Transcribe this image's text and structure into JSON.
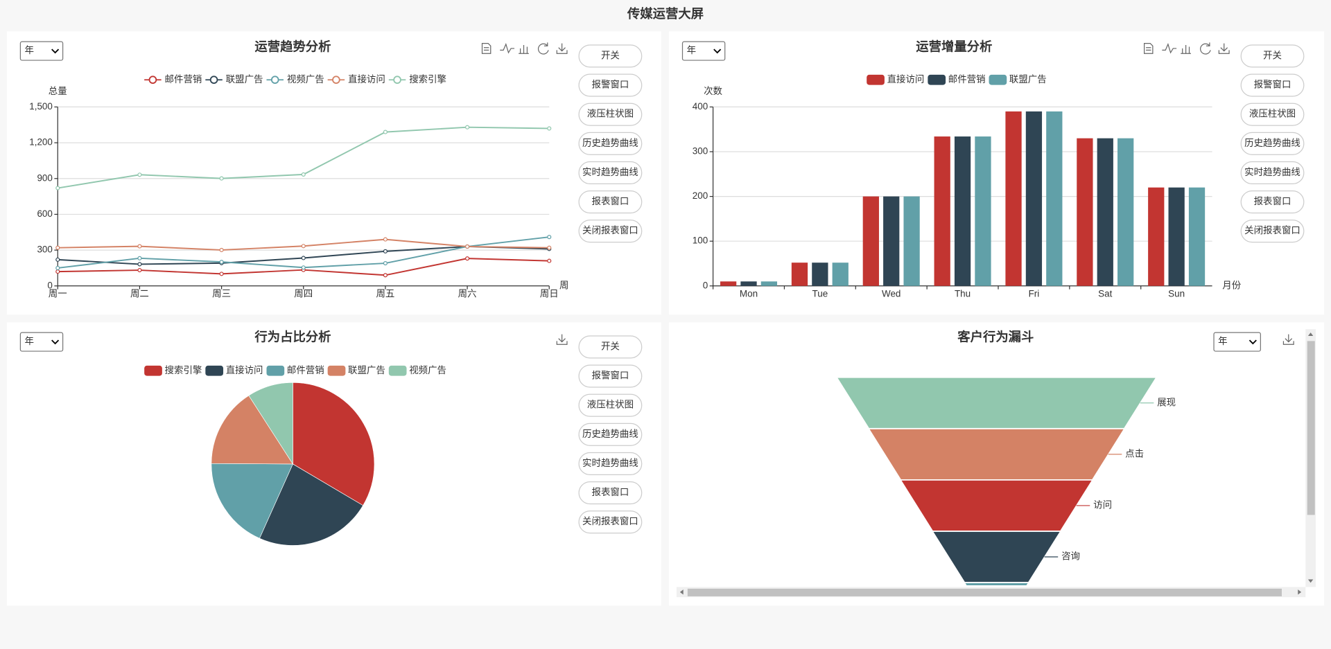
{
  "header": {
    "title": "传媒运营大屏"
  },
  "controls": {
    "period": "年",
    "buttons": [
      "开关",
      "报警窗口",
      "液压柱状图",
      "历史趋势曲线",
      "实时趋势曲线",
      "报表窗口",
      "关闭报表窗口"
    ]
  },
  "chart_data": [
    {
      "type": "line",
      "title": "运营趋势分析",
      "y_axis_label": "总量",
      "x_axis_label": "周",
      "categories": [
        "周一",
        "周二",
        "周三",
        "周四",
        "周五",
        "周六",
        "周日"
      ],
      "series": [
        {
          "name": "邮件营销",
          "color": "#c23531",
          "values": [
            120,
            132,
            101,
            134,
            90,
            230,
            210
          ]
        },
        {
          "name": "联盟广告",
          "color": "#2f4554",
          "values": [
            220,
            182,
            191,
            234,
            290,
            330,
            310
          ]
        },
        {
          "name": "视频广告",
          "color": "#61a0a8",
          "values": [
            150,
            232,
            201,
            154,
            190,
            330,
            410
          ]
        },
        {
          "name": "直接访问",
          "color": "#d48265",
          "values": [
            320,
            332,
            301,
            334,
            390,
            330,
            320
          ]
        },
        {
          "name": "搜索引擎",
          "color": "#91c7ae",
          "values": [
            820,
            932,
            901,
            934,
            1290,
            1330,
            1320
          ]
        }
      ],
      "ylim": [
        0,
        1500
      ],
      "yticks": [
        0,
        300,
        600,
        900,
        {
          "value": 1200,
          "label": "1,200"
        },
        {
          "value": 1500,
          "label": "1,500"
        }
      ],
      "grid": true,
      "legend": "top"
    },
    {
      "type": "bar",
      "title": "运营增量分析",
      "y_axis_label": "次数",
      "x_axis_label": "月份",
      "categories": [
        "Mon",
        "Tue",
        "Wed",
        "Thu",
        "Fri",
        "Sat",
        "Sun"
      ],
      "series": [
        {
          "name": "直接访问",
          "color": "#c23531",
          "values": [
            10,
            52,
            200,
            334,
            390,
            330,
            220
          ]
        },
        {
          "name": "邮件营销",
          "color": "#2f4554",
          "values": [
            10,
            52,
            200,
            334,
            390,
            330,
            220
          ]
        },
        {
          "name": "联盟广告",
          "color": "#61a0a8",
          "values": [
            10,
            52,
            200,
            334,
            390,
            330,
            220
          ]
        }
      ],
      "ylim": [
        0,
        400
      ],
      "yticks": [
        0,
        100,
        200,
        300,
        400
      ],
      "grid": true,
      "legend": "top"
    },
    {
      "type": "pie",
      "title": "行为占比分析",
      "categories": [
        "搜索引擎",
        "直接访问",
        "邮件营销",
        "联盟广告",
        "视频广告"
      ],
      "values": [
        33.5,
        23.2,
        18.4,
        15.8,
        9.1
      ],
      "colors": [
        "#c23531",
        "#2f4554",
        "#61a0a8",
        "#d48265",
        "#91c7ae"
      ],
      "legend": "top"
    },
    {
      "type": "funnel",
      "title": "客户行为漏斗",
      "categories": [
        "展现",
        "点击",
        "访问",
        "咨询",
        null
      ],
      "values": [
        100,
        80,
        60,
        40,
        20
      ],
      "colors": [
        "#91c7ae",
        "#d48265",
        "#c23531",
        "#2f4554",
        "#61a0a8"
      ]
    }
  ]
}
